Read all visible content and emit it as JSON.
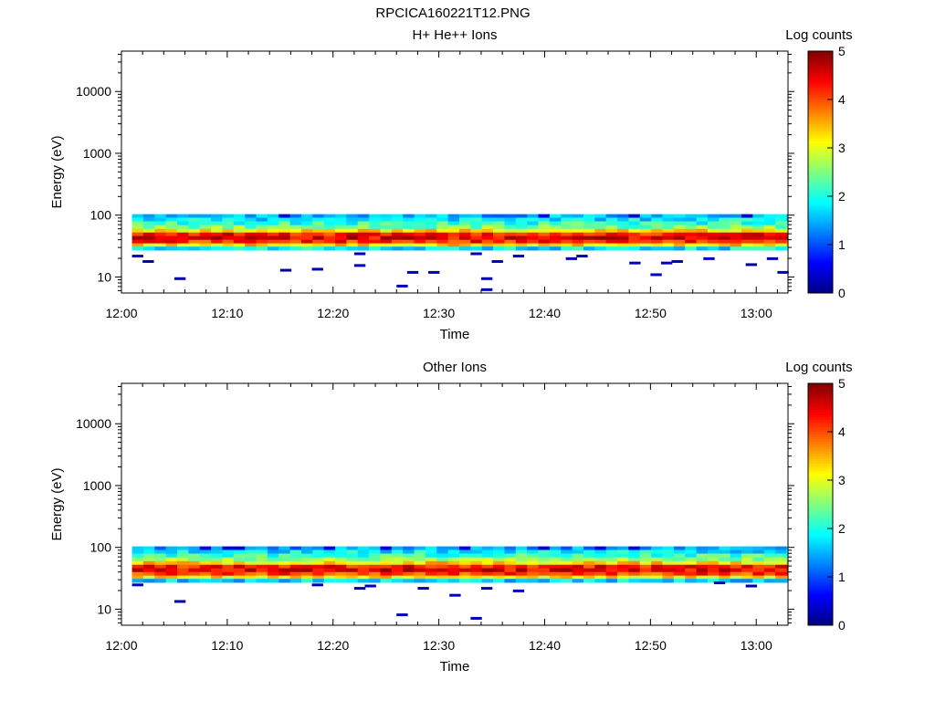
{
  "figure": {
    "title": "RPCICA160221T12.PNG"
  },
  "chart_data": [
    {
      "type": "heatmap",
      "title": "H+ He++ Ions",
      "xlabel": "Time",
      "ylabel": "Energy (eV)",
      "xlim": [
        "12:00",
        "13:03"
      ],
      "ylim": [
        5.5,
        45000
      ],
      "yscale": "log",
      "xticks": [
        "12:00",
        "12:10",
        "12:20",
        "12:30",
        "12:40",
        "12:50",
        "13:00"
      ],
      "yticks": [
        "10",
        "100",
        "1000",
        "10000"
      ],
      "colorbar": {
        "label": "Log counts",
        "range": [
          0,
          5
        ],
        "ticks": [
          "0",
          "1",
          "2",
          "3",
          "4",
          "5"
        ],
        "colormap": "jet"
      },
      "grid": false,
      "time_range": [
        "12:01",
        "13:03"
      ],
      "energy_levels_eV": [
        97,
        85,
        74,
        64,
        56,
        49,
        43,
        37,
        33,
        29
      ],
      "log_counts_profile": [
        1.5,
        1.8,
        2.1,
        2.5,
        3.2,
        4.3,
        4.5,
        4.2,
        3.3,
        1.8
      ],
      "low_energy_sparse_samples": [
        {
          "time": "12:01",
          "energy": 22,
          "log_counts": 0.4
        },
        {
          "time": "12:02",
          "energy": 18,
          "log_counts": 0.3
        },
        {
          "time": "12:05",
          "energy": 9.5,
          "log_counts": 0.2
        },
        {
          "time": "12:15",
          "energy": 13,
          "log_counts": 0.1
        },
        {
          "time": "12:18",
          "energy": 13.5,
          "log_counts": 0.2
        },
        {
          "time": "12:22",
          "energy": 15.5,
          "log_counts": 0.3
        },
        {
          "time": "12:22",
          "energy": 24,
          "log_counts": 0.3
        },
        {
          "time": "12:26",
          "energy": 7.2,
          "log_counts": 0.3
        },
        {
          "time": "12:27",
          "energy": 12,
          "log_counts": 0.3
        },
        {
          "time": "12:29",
          "energy": 12,
          "log_counts": 0.3
        },
        {
          "time": "12:33",
          "energy": 24,
          "log_counts": 0.3
        },
        {
          "time": "12:34",
          "energy": 9.5,
          "log_counts": 0.3
        },
        {
          "time": "12:34",
          "energy": 6.3,
          "log_counts": 0.3
        },
        {
          "time": "12:35",
          "energy": 18,
          "log_counts": 0.3
        },
        {
          "time": "12:37",
          "energy": 22,
          "log_counts": 0.3
        },
        {
          "time": "12:42",
          "energy": 20,
          "log_counts": 0.3
        },
        {
          "time": "12:43",
          "energy": 22,
          "log_counts": 0.3
        },
        {
          "time": "12:48",
          "energy": 17,
          "log_counts": 0.3
        },
        {
          "time": "12:50",
          "energy": 11,
          "log_counts": 0.3
        },
        {
          "time": "12:51",
          "energy": 17,
          "log_counts": 0.3
        },
        {
          "time": "12:52",
          "energy": 18,
          "log_counts": 0.3
        },
        {
          "time": "12:55",
          "energy": 20,
          "log_counts": 0.3
        },
        {
          "time": "12:59",
          "energy": 16,
          "log_counts": 0.1
        },
        {
          "time": "13:01",
          "energy": 20,
          "log_counts": 0.3
        },
        {
          "time": "13:02",
          "energy": 12,
          "log_counts": 0.3
        }
      ]
    },
    {
      "type": "heatmap",
      "title": "Other Ions",
      "xlabel": "Time",
      "ylabel": "Energy (eV)",
      "xlim": [
        "12:00",
        "13:03"
      ],
      "ylim": [
        5.5,
        45000
      ],
      "yscale": "log",
      "xticks": [
        "12:00",
        "12:10",
        "12:20",
        "12:30",
        "12:40",
        "12:50",
        "13:00"
      ],
      "yticks": [
        "10",
        "100",
        "1000",
        "10000"
      ],
      "colorbar": {
        "label": "Log counts",
        "range": [
          0,
          5
        ],
        "ticks": [
          "0",
          "1",
          "2",
          "3",
          "4",
          "5"
        ],
        "colormap": "jet"
      },
      "grid": false,
      "time_range": [
        "12:01",
        "13:03"
      ],
      "energy_levels_eV": [
        97,
        85,
        74,
        64,
        56,
        49,
        43,
        37,
        33,
        29
      ],
      "log_counts_profile": [
        1.4,
        1.8,
        2.2,
        2.6,
        3.3,
        4.3,
        4.5,
        4.1,
        3.2,
        1.7
      ],
      "low_energy_sparse_samples": [
        {
          "time": "12:01",
          "energy": 25,
          "log_counts": 0.4
        },
        {
          "time": "12:05",
          "energy": 13.5,
          "log_counts": 0.2
        },
        {
          "time": "12:18",
          "energy": 25,
          "log_counts": 0.3
        },
        {
          "time": "12:22",
          "energy": 22,
          "log_counts": 0.3
        },
        {
          "time": "12:23",
          "energy": 24,
          "log_counts": 0.3
        },
        {
          "time": "12:26",
          "energy": 8.2,
          "log_counts": 0.3
        },
        {
          "time": "12:28",
          "energy": 22,
          "log_counts": 0.3
        },
        {
          "time": "12:31",
          "energy": 17,
          "log_counts": 0.3
        },
        {
          "time": "12:33",
          "energy": 7.2,
          "log_counts": 0.3
        },
        {
          "time": "12:34",
          "energy": 22,
          "log_counts": 0.3
        },
        {
          "time": "12:37",
          "energy": 20,
          "log_counts": 0.3
        },
        {
          "time": "12:56",
          "energy": 27,
          "log_counts": 0.3
        },
        {
          "time": "12:59",
          "energy": 24,
          "log_counts": 0.2
        }
      ]
    }
  ]
}
